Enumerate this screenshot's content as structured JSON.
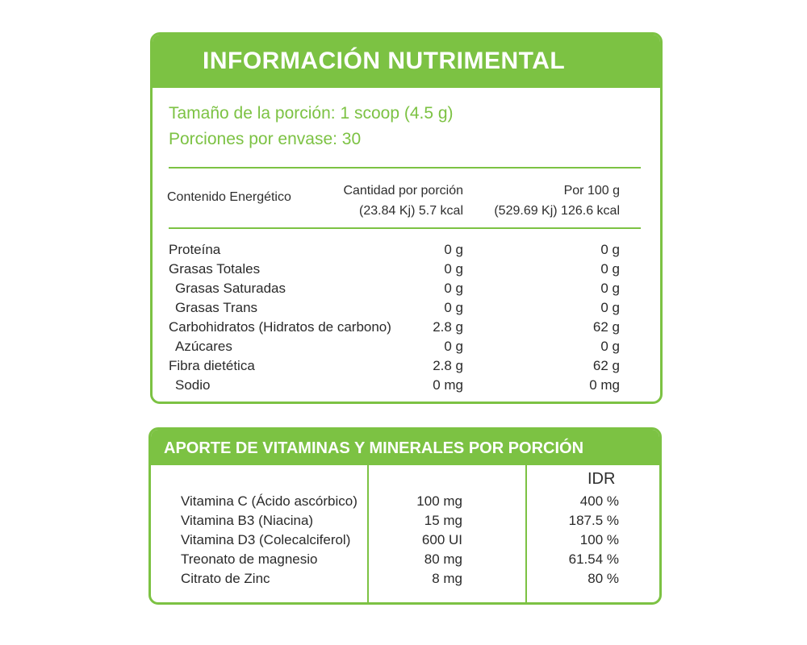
{
  "nutrition": {
    "title": "INFORMACIÓN  NUTRIMENTAL",
    "serving_size": "Tamaño de la porción: 1 scoop (4.5 g)",
    "servings_per_container": "Porciones por envase: 30",
    "energy_label": "Contenido Energético",
    "col1_header_line1": "Cantidad por porción",
    "col1_header_line2": "(23.84 Kj) 5.7 kcal",
    "col2_header_line1": "Por 100 g",
    "col2_header_line2": "(529.69 Kj) 126.6 kcal",
    "rows": [
      {
        "label": "Proteína",
        "per_serving": "0 g",
        "per_100g": "0 g",
        "indent": false
      },
      {
        "label": "Grasas Totales",
        "per_serving": "0 g",
        "per_100g": "0 g",
        "indent": false
      },
      {
        "label": "Grasas Saturadas",
        "per_serving": "0 g",
        "per_100g": "0 g",
        "indent": true
      },
      {
        "label": "Grasas Trans",
        "per_serving": "0 g",
        "per_100g": "0 g",
        "indent": true
      },
      {
        "label": "Carbohidratos (Hidratos de carbono)",
        "per_serving": "2.8 g",
        "per_100g": "62 g",
        "indent": false
      },
      {
        "label": "Azúcares",
        "per_serving": "0 g",
        "per_100g": "0 g",
        "indent": true
      },
      {
        "label": "Fibra dietética",
        "per_serving": "2.8 g",
        "per_100g": "62 g",
        "indent": false
      },
      {
        "label": "Sodio",
        "per_serving": "0 mg",
        "per_100g": "0 mg",
        "indent": true
      }
    ]
  },
  "vitamins": {
    "title": "APORTE DE VITAMINAS Y MINERALES POR PORCIÓN",
    "idr_header": "IDR",
    "rows": [
      {
        "label": "Vitamina C (Ácido ascórbico)",
        "amount": "100 mg",
        "idr": "400 %"
      },
      {
        "label": "Vitamina B3 (Niacina)",
        "amount": "15 mg",
        "idr": "187.5 %"
      },
      {
        "label": "Vitamina D3 (Colecalciferol)",
        "amount": "600 UI",
        "idr": "100 %"
      },
      {
        "label": "Treonato de magnesio",
        "amount": "80 mg",
        "idr": "61.54 %"
      },
      {
        "label": "Citrato de Zinc",
        "amount": "8 mg",
        "idr": "80 %"
      }
    ]
  },
  "colors": {
    "accent": "#7cc243",
    "text": "#2a2a2a"
  }
}
